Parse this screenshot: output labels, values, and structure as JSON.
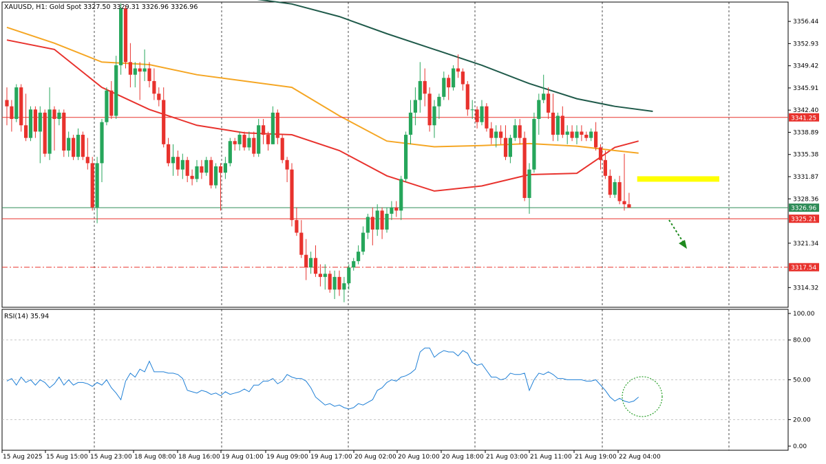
{
  "header": {
    "symbol_info": "XAUUSD, H1:  Gold Spot  3327.50 3329.31 3326.96 3326.96"
  },
  "rsi_header": "RSI(14) 35.94",
  "chart_data": [
    {
      "type": "candlestick",
      "title": "XAUUSD, H1:  Gold Spot  3327.50 3329.31 3326.96 3326.96",
      "ylim": [
        3311.2,
        3359.5
      ],
      "y_ticks": [
        "3356.44",
        "3352.93",
        "3349.42",
        "3345.91",
        "3342.40",
        "3338.89",
        "3335.38",
        "3331.87",
        "3328.36",
        "3321.34",
        "3314.32"
      ],
      "x_ticks": [
        "15 Aug 2025",
        "15 Aug 15:00",
        "15 Aug 23:00",
        "18 Aug 08:00",
        "18 Aug 16:00",
        "19 Aug 01:00",
        "19 Aug 09:00",
        "19 Aug 17:00",
        "20 Aug 02:00",
        "20 Aug 10:00",
        "20 Aug 18:00",
        "21 Aug 03:00",
        "21 Aug 11:00",
        "21 Aug 19:00",
        "22 Aug 04:00"
      ],
      "colors": {
        "bull": "#26a65b",
        "bear": "#e8322d",
        "current_price_line": "#2e8b57",
        "level_line": "#e8322d",
        "ma_fast": "#e8322d",
        "ma_mid": "#f5a623",
        "ma_slow": "#1f5a4a",
        "zone": "#ffff00",
        "arrow": "#1f8a1f"
      },
      "price_levels": [
        {
          "label": "3341.25",
          "value": 3341.25,
          "style": "solid",
          "color": "#e8322d"
        },
        {
          "label": "3326.96",
          "value": 3326.96,
          "style": "solid",
          "color": "#2e8b57"
        },
        {
          "label": "3325.21",
          "value": 3325.21,
          "style": "solid",
          "color": "#e8322d"
        },
        {
          "label": "3317.54",
          "value": 3317.54,
          "style": "dashdot",
          "color": "#e8322d"
        }
      ],
      "candles": [
        [
          3344,
          3346,
          3340,
          3343
        ],
        [
          3343,
          3344,
          3339,
          3341
        ],
        [
          3341,
          3346.5,
          3340.5,
          3346
        ],
        [
          3346,
          3346.5,
          3339,
          3340
        ],
        [
          3340,
          3345,
          3337.5,
          3338
        ],
        [
          3338,
          3343,
          3337.5,
          3342.5
        ],
        [
          3342.5,
          3343,
          3338,
          3339
        ],
        [
          3339,
          3343,
          3334,
          3342
        ],
        [
          3342,
          3342.5,
          3335,
          3335.5
        ],
        [
          3335.5,
          3346,
          3334.5,
          3342.5
        ],
        [
          3342.5,
          3343,
          3336,
          3341
        ],
        [
          3341,
          3342.5,
          3340,
          3342
        ],
        [
          3342,
          3342.5,
          3335,
          3336
        ],
        [
          3336,
          3339,
          3335,
          3338
        ],
        [
          3338,
          3338.5,
          3334.5,
          3335
        ],
        [
          3335,
          3339.5,
          3334.5,
          3338.5
        ],
        [
          3338.5,
          3339,
          3334.5,
          3335
        ],
        [
          3335,
          3338,
          3333,
          3334
        ],
        [
          3334,
          3335,
          3326.5,
          3327
        ],
        [
          3327,
          3335,
          3324.5,
          3334
        ],
        [
          3334,
          3341,
          3331,
          3340.5
        ],
        [
          3340.5,
          3346,
          3340,
          3345.5
        ],
        [
          3345.5,
          3347,
          3341,
          3341.5
        ],
        [
          3341.5,
          3351,
          3341,
          3349.5
        ],
        [
          3349.5,
          3359.3,
          3348,
          3358.5
        ],
        [
          3358.5,
          3359,
          3349,
          3350
        ],
        [
          3350,
          3353,
          3346,
          3348
        ],
        [
          3348,
          3350,
          3346,
          3349
        ],
        [
          3349,
          3350,
          3344,
          3348.5
        ],
        [
          3348.5,
          3352,
          3347,
          3349
        ],
        [
          3349,
          3350,
          3346,
          3347
        ],
        [
          3347,
          3349,
          3344,
          3345
        ],
        [
          3345,
          3346,
          3343,
          3344
        ],
        [
          3344,
          3346,
          3336.5,
          3337
        ],
        [
          3337,
          3338,
          3333.5,
          3334
        ],
        [
          3334,
          3337,
          3332,
          3335
        ],
        [
          3335,
          3336,
          3332,
          3333
        ],
        [
          3333,
          3335.5,
          3331.5,
          3334.5
        ],
        [
          3334.5,
          3335,
          3331,
          3332
        ],
        [
          3332,
          3333,
          3330.5,
          3331.5
        ],
        [
          3331.5,
          3334.5,
          3331,
          3333.5
        ],
        [
          3333.5,
          3334.5,
          3331.5,
          3332.5
        ],
        [
          3332.5,
          3335,
          3332,
          3334.5
        ],
        [
          3334.5,
          3335,
          3330,
          3330.5
        ],
        [
          3330.5,
          3334,
          3330,
          3333.5
        ],
        [
          3333.5,
          3334,
          3326.5,
          3332.5
        ],
        [
          3332.5,
          3335,
          3331.5,
          3334
        ],
        [
          3334,
          3338,
          3333.5,
          3337.5
        ],
        [
          3337.5,
          3338,
          3336,
          3337
        ],
        [
          3337,
          3339,
          3336,
          3338.5
        ],
        [
          3338.5,
          3339,
          3336,
          3336.5
        ],
        [
          3336.5,
          3339,
          3336,
          3338
        ],
        [
          3338,
          3339,
          3335,
          3335.5
        ],
        [
          3335.5,
          3341,
          3335,
          3340
        ],
        [
          3340,
          3341,
          3337,
          3338.5
        ],
        [
          3338.5,
          3339,
          3336,
          3337
        ],
        [
          3337,
          3343,
          3337,
          3342
        ],
        [
          3342,
          3342.5,
          3337,
          3338
        ],
        [
          3338,
          3338.5,
          3334,
          3334.5
        ],
        [
          3334.5,
          3335,
          3331,
          3333
        ],
        [
          3333,
          3334,
          3324,
          3325
        ],
        [
          3325,
          3327,
          3322.5,
          3323
        ],
        [
          3323,
          3325,
          3319,
          3319.5
        ],
        [
          3319.5,
          3322,
          3315.5,
          3317.5
        ],
        [
          3317.5,
          3320,
          3316.5,
          3319
        ],
        [
          3319,
          3321,
          3316,
          3316.5
        ],
        [
          3316.5,
          3318,
          3314.5,
          3316
        ],
        [
          3316,
          3318,
          3314,
          3316.5
        ],
        [
          3316.5,
          3317,
          3313.5,
          3314
        ],
        [
          3314,
          3317,
          3312.5,
          3316
        ],
        [
          3316,
          3317,
          3313,
          3314
        ],
        [
          3314,
          3316,
          3312,
          3315
        ],
        [
          3315,
          3318,
          3314,
          3317.5
        ],
        [
          3317.5,
          3319,
          3317,
          3318.5
        ],
        [
          3318.5,
          3321,
          3318,
          3320
        ],
        [
          3320,
          3324,
          3319.5,
          3323
        ],
        [
          3323,
          3326,
          3322,
          3325.5
        ],
        [
          3325.5,
          3327,
          3321,
          3323.5
        ],
        [
          3323.5,
          3327.5,
          3322.5,
          3326.5
        ],
        [
          3326.5,
          3327,
          3322,
          3323.5
        ],
        [
          3323.5,
          3327,
          3323,
          3326
        ],
        [
          3326,
          3328,
          3325,
          3327
        ],
        [
          3327,
          3328,
          3325.5,
          3326.5
        ],
        [
          3326.5,
          3332,
          3325,
          3331.5
        ],
        [
          3331.5,
          3339,
          3331,
          3338.5
        ],
        [
          3338.5,
          3344,
          3337,
          3342
        ],
        [
          3342,
          3346,
          3340,
          3344
        ],
        [
          3344,
          3350,
          3342,
          3347
        ],
        [
          3347,
          3349,
          3343,
          3345
        ],
        [
          3345,
          3346,
          3339,
          3340
        ],
        [
          3340,
          3344,
          3338,
          3343
        ],
        [
          3343,
          3345,
          3341,
          3344.5
        ],
        [
          3344.5,
          3348.5,
          3344,
          3347.5
        ],
        [
          3347.5,
          3348,
          3344,
          3346
        ],
        [
          3346,
          3349.5,
          3345.5,
          3349
        ],
        [
          3349,
          3351.2,
          3347.5,
          3348.5
        ],
        [
          3348.5,
          3349,
          3345.5,
          3346.5
        ],
        [
          3346.5,
          3347,
          3341.5,
          3342.5
        ],
        [
          3342.5,
          3344,
          3341,
          3342.5
        ],
        [
          3342.5,
          3343,
          3339.5,
          3340.5
        ],
        [
          3340.5,
          3344,
          3340,
          3343
        ],
        [
          3343,
          3343.5,
          3339,
          3339.5
        ],
        [
          3339.5,
          3340.5,
          3337,
          3338
        ],
        [
          3338,
          3340,
          3336.5,
          3339
        ],
        [
          3339,
          3340,
          3337,
          3338
        ],
        [
          3338,
          3340,
          3334.5,
          3335
        ],
        [
          3335,
          3338.5,
          3334,
          3338
        ],
        [
          3338,
          3341,
          3337.5,
          3340
        ],
        [
          3340,
          3341,
          3337,
          3338
        ],
        [
          3338,
          3339,
          3328,
          3328.5
        ],
        [
          3328.5,
          3334,
          3326,
          3333
        ],
        [
          3333,
          3342,
          3332.5,
          3341
        ],
        [
          3341,
          3345,
          3338.5,
          3344
        ],
        [
          3344,
          3348,
          3343.5,
          3345
        ],
        [
          3345,
          3346,
          3341,
          3342
        ],
        [
          3342,
          3345,
          3337.5,
          3338.5
        ],
        [
          3338.5,
          3342,
          3337.5,
          3341.5
        ],
        [
          3341.5,
          3343,
          3338,
          3338.5
        ],
        [
          3338.5,
          3340,
          3337,
          3339
        ],
        [
          3339,
          3340,
          3337.5,
          3338
        ],
        [
          3338,
          3340,
          3337,
          3339
        ],
        [
          3339,
          3340,
          3337.5,
          3338.5
        ],
        [
          3338.5,
          3339,
          3337.5,
          3338
        ],
        [
          3338,
          3339.5,
          3337.5,
          3339
        ],
        [
          3339,
          3340.5,
          3336,
          3336.5
        ],
        [
          3336.5,
          3337,
          3333,
          3334.5
        ],
        [
          3334.5,
          3336,
          3331.5,
          3332
        ],
        [
          3332,
          3333,
          3328.5,
          3329
        ],
        [
          3329,
          3331.5,
          3328.5,
          3331
        ],
        [
          3331,
          3332,
          3327.5,
          3328
        ],
        [
          3328,
          3335.5,
          3326.5,
          3327.5
        ],
        [
          3327.5,
          3329.31,
          3326.96,
          3326.96
        ]
      ],
      "moving_averages": [
        {
          "name": "MA fast",
          "color": "#e8322d",
          "x": [
            0,
            10,
            20,
            30,
            40,
            50,
            60,
            70,
            80,
            90,
            100,
            110,
            120,
            128,
            133
          ],
          "y": [
            3353.5,
            3352,
            3346,
            3342.5,
            3340,
            3338.8,
            3338.5,
            3336,
            3332,
            3329.6,
            3330.4,
            3332.2,
            3332.4,
            3336.5,
            3337.5
          ]
        },
        {
          "name": "MA mid",
          "color": "#f5a623",
          "x": [
            0,
            10,
            20,
            30,
            40,
            50,
            60,
            70,
            80,
            90,
            100,
            110,
            120,
            128,
            133
          ],
          "y": [
            3355.5,
            3353,
            3350,
            3349.6,
            3348,
            3347,
            3346,
            3341.5,
            3337.5,
            3336.6,
            3336.8,
            3337.1,
            3336.7,
            3336,
            3335.6
          ]
        },
        {
          "name": "MA slow",
          "color": "#1f5a4a",
          "x": [
            52,
            60,
            70,
            80,
            90,
            100,
            110,
            120,
            128,
            136
          ],
          "y": [
            3360,
            3359.2,
            3357.2,
            3354.5,
            3352,
            3349.5,
            3346.6,
            3344.2,
            3343,
            3342.2
          ]
        }
      ],
      "annotations": [
        {
          "type": "zone",
          "y": 3331.5,
          "x_from": 133,
          "x_to": 150,
          "color": "#ffff00"
        },
        {
          "type": "arrow",
          "direction": "down-right",
          "color": "#1f8a1f"
        }
      ]
    },
    {
      "type": "line",
      "title": "RSI(14) 35.94",
      "ylim": [
        0,
        100
      ],
      "y_ticks": [
        "100.00",
        "80.00",
        "50.00",
        "20.00",
        "0.00"
      ],
      "levels": [
        80,
        50,
        20
      ],
      "color": "#1e7fd6",
      "values": [
        49,
        51,
        46,
        52,
        48,
        50,
        46,
        50,
        48,
        44,
        47,
        52,
        46,
        50,
        46,
        48,
        48,
        47,
        45,
        48,
        46,
        50,
        44,
        40,
        35,
        49,
        55,
        52,
        58,
        56,
        64,
        56,
        56,
        56,
        55,
        55,
        54,
        51,
        42,
        41,
        40,
        42,
        41,
        39,
        40,
        38,
        41,
        39,
        40,
        41,
        43,
        41,
        46,
        46,
        49,
        49,
        51,
        47,
        49,
        54,
        52,
        51,
        51,
        49,
        44,
        37,
        34,
        31,
        32,
        30,
        31,
        29,
        28,
        29,
        32,
        31,
        33,
        35,
        42,
        44,
        48,
        50,
        49,
        52,
        53,
        55,
        58,
        71,
        74,
        74,
        67,
        70,
        72,
        71,
        71,
        68,
        72,
        70,
        63,
        61,
        62,
        57,
        52,
        52,
        50,
        51,
        55,
        54,
        54,
        55,
        42,
        50,
        55,
        54,
        56,
        54,
        51,
        51,
        50,
        50,
        50,
        50,
        49,
        49,
        50,
        46,
        42,
        37,
        34,
        36,
        34,
        33,
        34,
        37
      ]
    }
  ],
  "icons": {
    "current_price_badge": "price-tag",
    "arrow": "dotted-arrow-down-right",
    "rsi_circle": "dotted-circle"
  }
}
